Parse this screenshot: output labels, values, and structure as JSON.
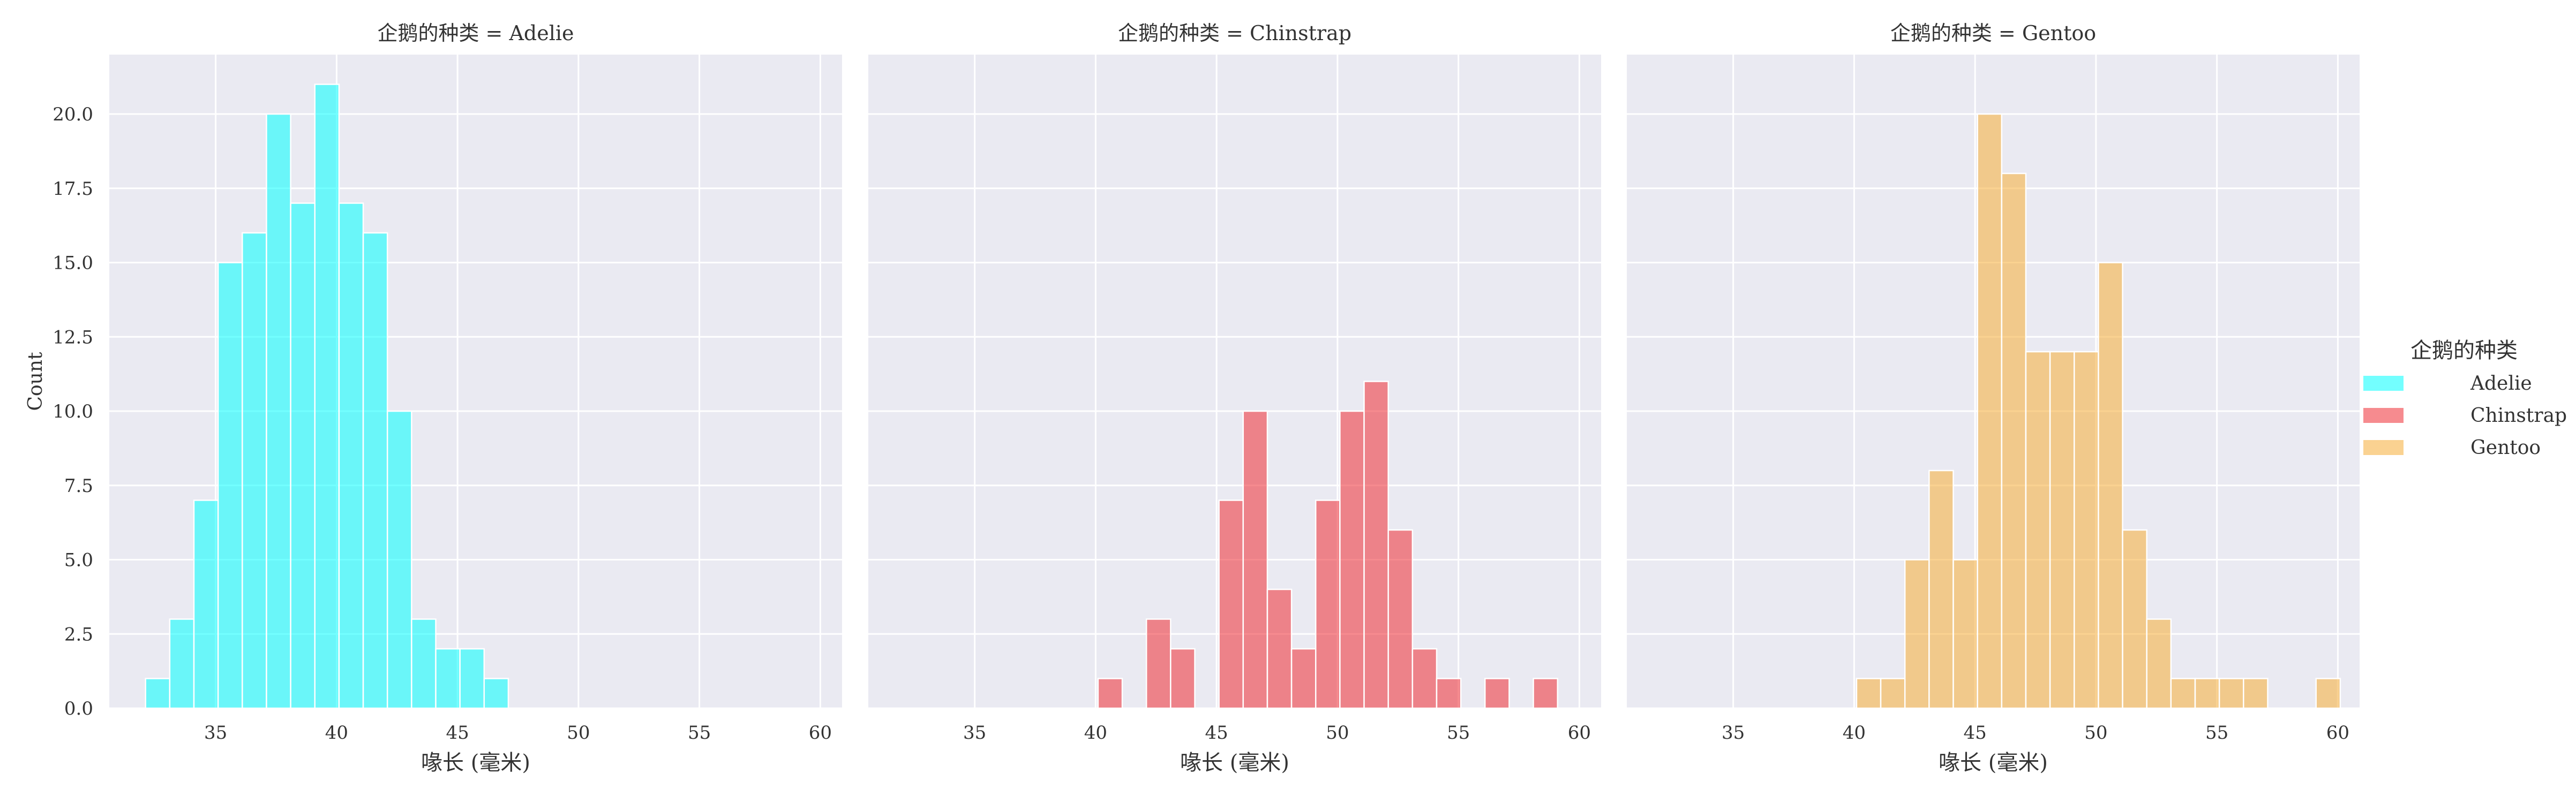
{
  "legend": {
    "title": "企鹅的种类",
    "placement": "right",
    "entries": [
      {
        "label": "Adelie",
        "color": "#00ffff"
      },
      {
        "label": "Chinstrap",
        "color": "#ef2b33"
      },
      {
        "label": "Gentoo",
        "color": "#f5ad37"
      }
    ]
  },
  "chart_data": [
    {
      "type": "bar",
      "title": "企鹅的种类 = Adelie",
      "xlabel": "喙长 (毫米)",
      "ylabel": "Count",
      "xlim": [
        30.6,
        60.9
      ],
      "ylim": [
        0,
        22
      ],
      "xticks": [
        35,
        40,
        45,
        50,
        55,
        60
      ],
      "yticks": [
        0.0,
        2.5,
        5.0,
        7.5,
        10.0,
        12.5,
        15.0,
        17.5,
        20.0
      ],
      "grid": true,
      "color": "#00ffff",
      "bin_width": 1.0,
      "bins": [
        {
          "x": 32.1,
          "count": 1
        },
        {
          "x": 33.1,
          "count": 3
        },
        {
          "x": 34.1,
          "count": 7
        },
        {
          "x": 35.1,
          "count": 15
        },
        {
          "x": 36.1,
          "count": 16
        },
        {
          "x": 37.1,
          "count": 20
        },
        {
          "x": 38.1,
          "count": 17
        },
        {
          "x": 39.1,
          "count": 21
        },
        {
          "x": 40.1,
          "count": 17
        },
        {
          "x": 41.1,
          "count": 16
        },
        {
          "x": 42.1,
          "count": 10
        },
        {
          "x": 43.1,
          "count": 3
        },
        {
          "x": 44.1,
          "count": 2
        },
        {
          "x": 45.1,
          "count": 2
        },
        {
          "x": 46.1,
          "count": 1
        }
      ]
    },
    {
      "type": "bar",
      "title": "企鹅的种类 = Chinstrap",
      "xlabel": "喙长 (毫米)",
      "ylabel": "",
      "xlim": [
        30.6,
        60.9
      ],
      "ylim": [
        0,
        22
      ],
      "xticks": [
        35,
        40,
        45,
        50,
        55,
        60
      ],
      "yticks": [
        0.0,
        2.5,
        5.0,
        7.5,
        10.0,
        12.5,
        15.0,
        17.5,
        20.0
      ],
      "grid": true,
      "color": "#ef2b33",
      "bin_width": 1.0,
      "bins": [
        {
          "x": 40.1,
          "count": 1
        },
        {
          "x": 42.1,
          "count": 3
        },
        {
          "x": 43.1,
          "count": 2
        },
        {
          "x": 45.1,
          "count": 7
        },
        {
          "x": 46.1,
          "count": 10
        },
        {
          "x": 47.1,
          "count": 4
        },
        {
          "x": 48.1,
          "count": 2
        },
        {
          "x": 49.1,
          "count": 7
        },
        {
          "x": 50.1,
          "count": 10
        },
        {
          "x": 51.1,
          "count": 11
        },
        {
          "x": 52.1,
          "count": 6
        },
        {
          "x": 53.1,
          "count": 2
        },
        {
          "x": 54.1,
          "count": 1
        },
        {
          "x": 56.1,
          "count": 1
        },
        {
          "x": 58.1,
          "count": 1
        }
      ]
    },
    {
      "type": "bar",
      "title": "企鹅的种类 = Gentoo",
      "xlabel": "喙长 (毫米)",
      "ylabel": "",
      "xlim": [
        30.6,
        60.9
      ],
      "ylim": [
        0,
        22
      ],
      "xticks": [
        35,
        40,
        45,
        50,
        55,
        60
      ],
      "yticks": [
        0.0,
        2.5,
        5.0,
        7.5,
        10.0,
        12.5,
        15.0,
        17.5,
        20.0
      ],
      "grid": true,
      "color": "#f5ad37",
      "bin_width": 1.0,
      "bins": [
        {
          "x": 40.1,
          "count": 1
        },
        {
          "x": 41.1,
          "count": 1
        },
        {
          "x": 42.1,
          "count": 5
        },
        {
          "x": 43.1,
          "count": 8
        },
        {
          "x": 44.1,
          "count": 5
        },
        {
          "x": 45.1,
          "count": 20
        },
        {
          "x": 46.1,
          "count": 18
        },
        {
          "x": 47.1,
          "count": 12
        },
        {
          "x": 48.1,
          "count": 12
        },
        {
          "x": 49.1,
          "count": 12
        },
        {
          "x": 50.1,
          "count": 15
        },
        {
          "x": 51.1,
          "count": 6
        },
        {
          "x": 52.1,
          "count": 3
        },
        {
          "x": 53.1,
          "count": 1
        },
        {
          "x": 54.1,
          "count": 1
        },
        {
          "x": 55.1,
          "count": 1
        },
        {
          "x": 56.1,
          "count": 1
        },
        {
          "x": 59.1,
          "count": 1
        }
      ]
    }
  ]
}
